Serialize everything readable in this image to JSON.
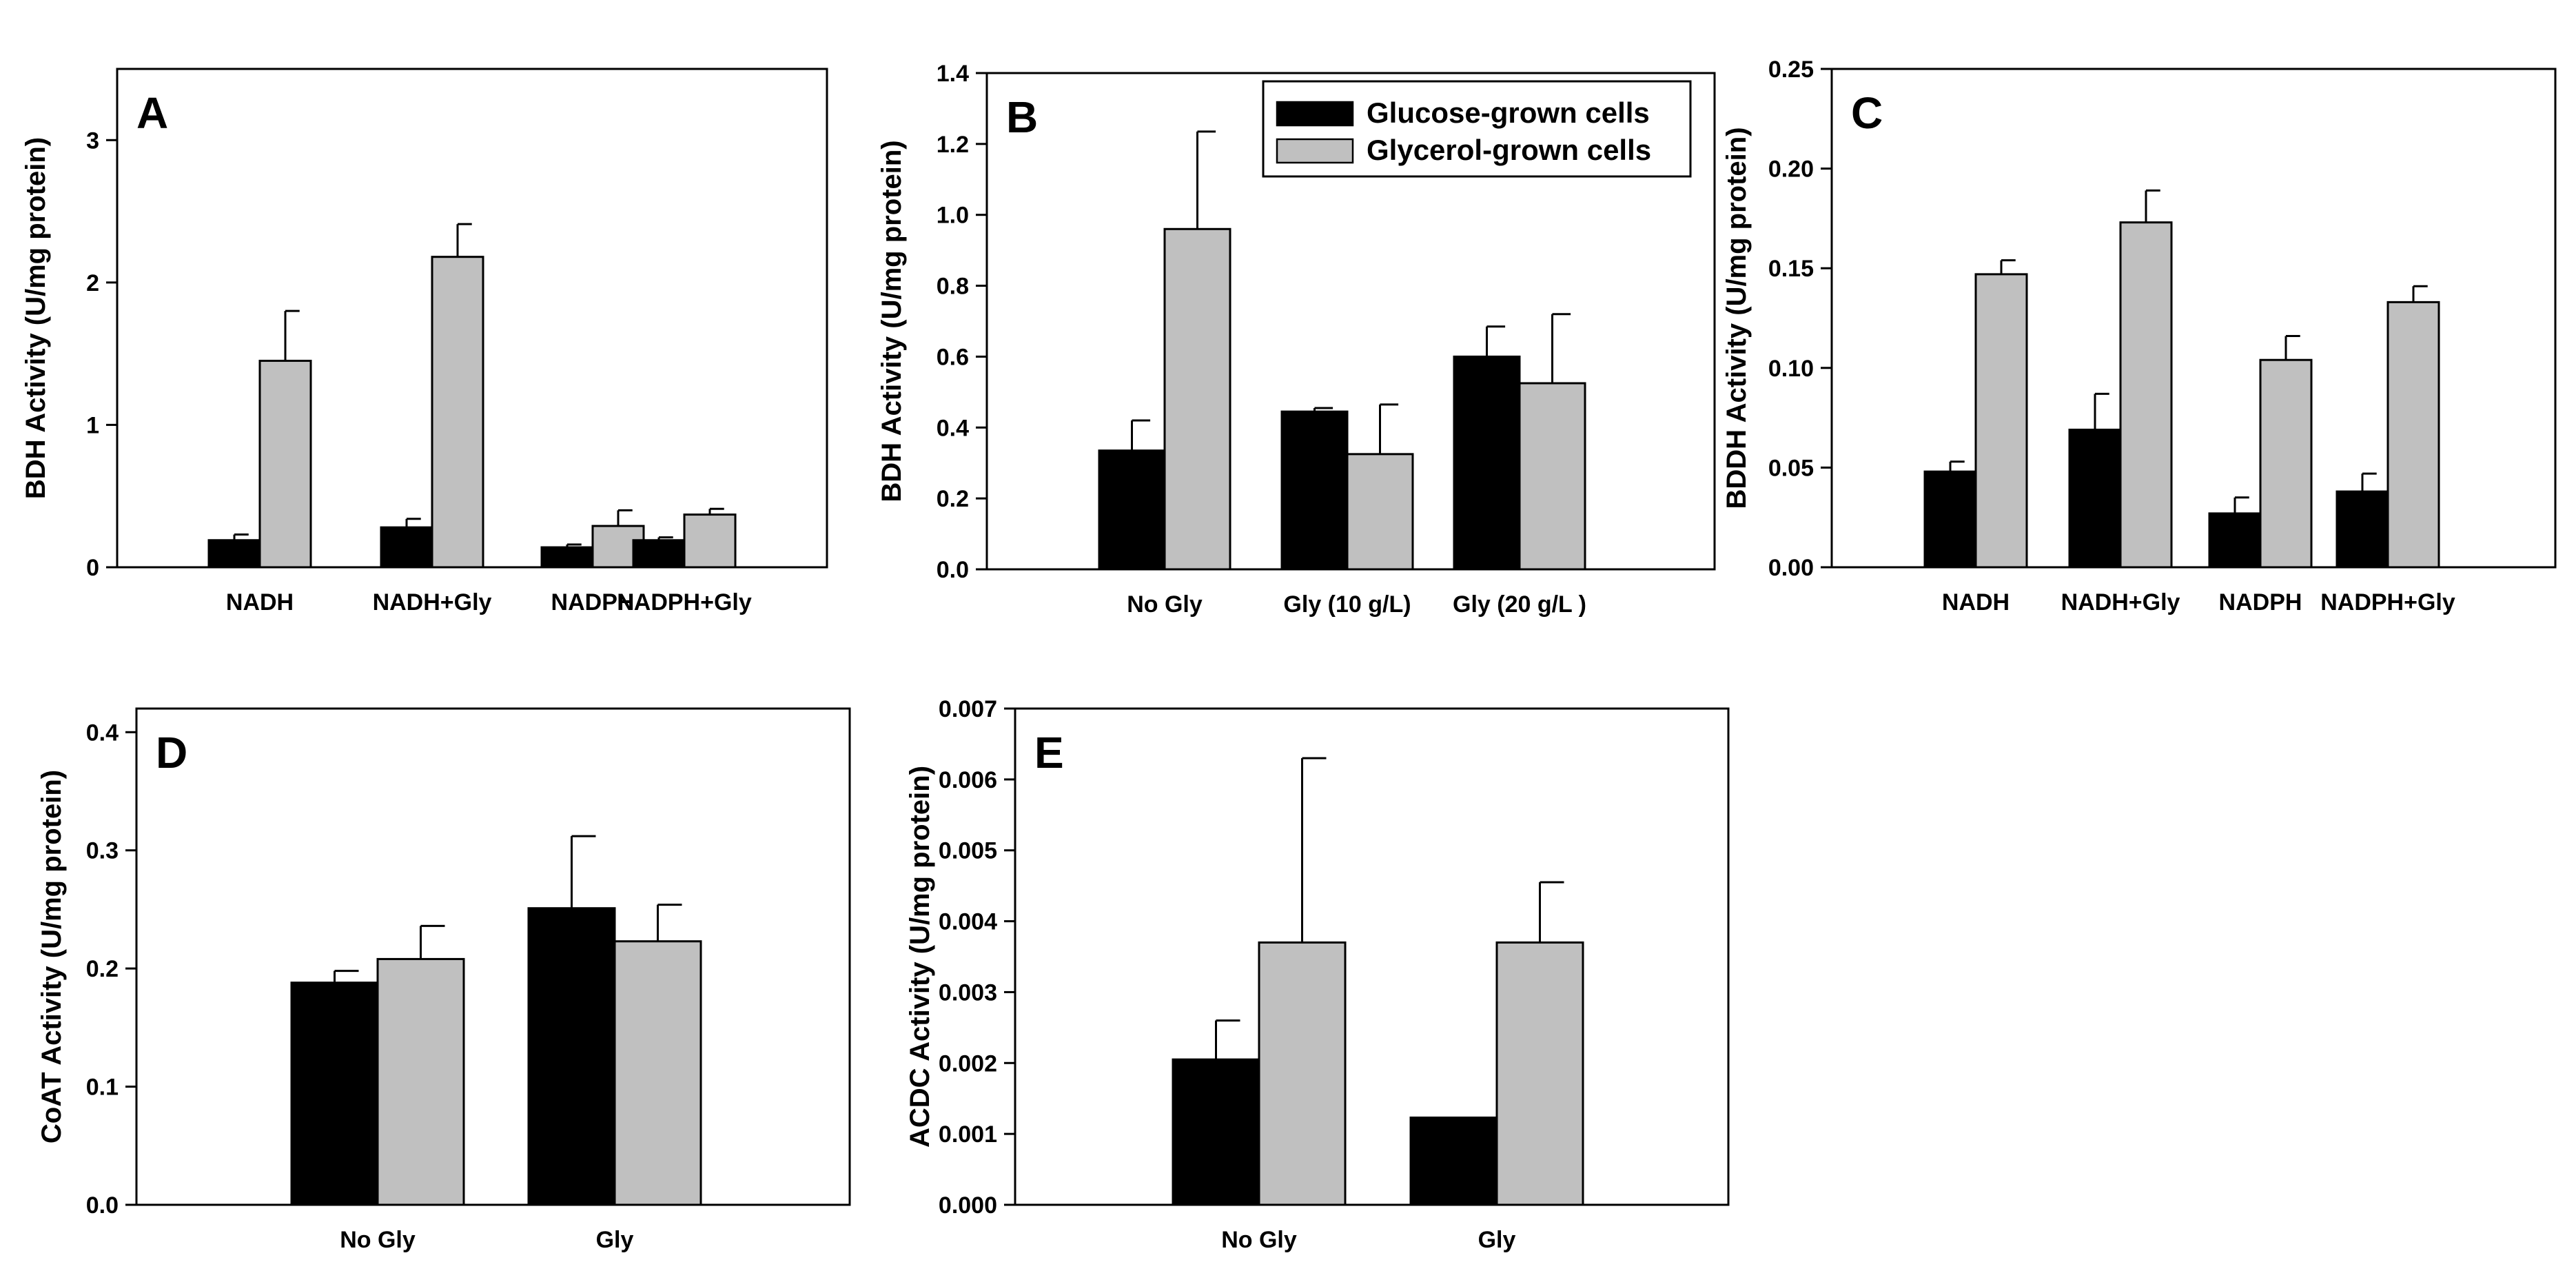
{
  "colors": {
    "glucose": "#000000",
    "glycerol": "#c0c0c0",
    "axis": "#000000",
    "background": "#ffffff"
  },
  "legend": {
    "series": [
      {
        "name": "Glucose-grown cells",
        "color": "#000000"
      },
      {
        "name": "Glycerol-grown cells",
        "color": "#c0c0c0"
      }
    ]
  },
  "chart_data": [
    {
      "id": "A",
      "type": "bar",
      "letter": "A",
      "ylabel": "BDH Activity (U/mg protein)",
      "ylim": [
        0,
        3.5
      ],
      "ticks": [
        "0",
        "1",
        "2",
        "3"
      ],
      "tick_values": [
        0,
        1,
        2,
        3
      ],
      "categories": [
        "NADH",
        "NADH+Gly",
        "NADPH",
        "NADPH+Gly"
      ],
      "series": [
        {
          "name": "Glucose-grown cells",
          "values": [
            0.19,
            0.28,
            0.14,
            0.19
          ],
          "errors": [
            0.04,
            0.06,
            0.02,
            0.02
          ]
        },
        {
          "name": "Glycerol-grown cells",
          "values": [
            1.45,
            2.18,
            0.29,
            0.37
          ],
          "errors": [
            0.35,
            0.23,
            0.11,
            0.04
          ]
        }
      ],
      "legend_location": "none"
    },
    {
      "id": "B",
      "type": "bar",
      "letter": "B",
      "ylabel": "BDH Activity (U/mg protein)",
      "ylim": [
        0,
        1.4
      ],
      "ticks": [
        "0.0",
        "0.2",
        "0.4",
        "0.6",
        "0.8",
        "1.0",
        "1.2",
        "1.4"
      ],
      "tick_values": [
        0,
        0.2,
        0.4,
        0.6,
        0.8,
        1.0,
        1.2,
        1.4
      ],
      "categories": [
        "No Gly",
        "Gly (10 g/L)",
        "Gly (20 g/L )"
      ],
      "series": [
        {
          "name": "Glucose-grown cells",
          "values": [
            0.335,
            0.445,
            0.6
          ],
          "errors": [
            0.085,
            0.01,
            0.085
          ]
        },
        {
          "name": "Glycerol-grown cells",
          "values": [
            0.96,
            0.325,
            0.525
          ],
          "errors": [
            0.275,
            0.14,
            0.195
          ]
        }
      ],
      "legend_location": "top-right"
    },
    {
      "id": "C",
      "type": "bar",
      "letter": "C",
      "ylabel": "BDDH Activity (U/mg protein)",
      "ylim": [
        0,
        0.25
      ],
      "ticks": [
        "0.00",
        "0.05",
        "0.10",
        "0.15",
        "0.20",
        "0.25"
      ],
      "tick_values": [
        0,
        0.05,
        0.1,
        0.15,
        0.2,
        0.25
      ],
      "categories": [
        "NADH",
        "NADH+Gly",
        "NADPH",
        "NADPH+Gly"
      ],
      "series": [
        {
          "name": "Glucose-grown cells",
          "values": [
            0.048,
            0.069,
            0.027,
            0.038
          ],
          "errors": [
            0.005,
            0.018,
            0.008,
            0.009
          ]
        },
        {
          "name": "Glycerol-grown cells",
          "values": [
            0.147,
            0.173,
            0.104,
            0.133
          ],
          "errors": [
            0.007,
            0.016,
            0.012,
            0.008
          ]
        }
      ],
      "legend_location": "none"
    },
    {
      "id": "D",
      "type": "bar",
      "letter": "D",
      "ylabel": "CoAT Activity (U/mg protein)",
      "ylim": [
        0,
        0.42
      ],
      "ticks": [
        "0.0",
        "0.1",
        "0.2",
        "0.3",
        "0.4"
      ],
      "tick_values": [
        0,
        0.1,
        0.2,
        0.3,
        0.4
      ],
      "categories": [
        "No Gly",
        "Gly"
      ],
      "series": [
        {
          "name": "Glucose-grown cells",
          "values": [
            0.188,
            0.251
          ],
          "errors": [
            0.01,
            0.061
          ]
        },
        {
          "name": "Glycerol-grown cells",
          "values": [
            0.208,
            0.223
          ],
          "errors": [
            0.028,
            0.031
          ]
        }
      ],
      "legend_location": "none"
    },
    {
      "id": "E",
      "type": "bar",
      "letter": "E",
      "ylabel": "ACDC Activity (U/mg protein)",
      "ylim": [
        0,
        0.007
      ],
      "ticks": [
        "0.000",
        "0.001",
        "0.002",
        "0.003",
        "0.004",
        "0.005",
        "0.006",
        "0.007"
      ],
      "tick_values": [
        0,
        0.001,
        0.002,
        0.003,
        0.004,
        0.005,
        0.006,
        0.007
      ],
      "categories": [
        "No Gly",
        "Gly"
      ],
      "series": [
        {
          "name": "Glucose-grown cells",
          "values": [
            0.00205,
            0.00123
          ],
          "errors": [
            0.00055,
            0
          ]
        },
        {
          "name": "Glycerol-grown cells",
          "values": [
            0.0037,
            0.0037
          ],
          "errors": [
            0.0026,
            0.00085
          ]
        }
      ],
      "legend_location": "none"
    }
  ]
}
